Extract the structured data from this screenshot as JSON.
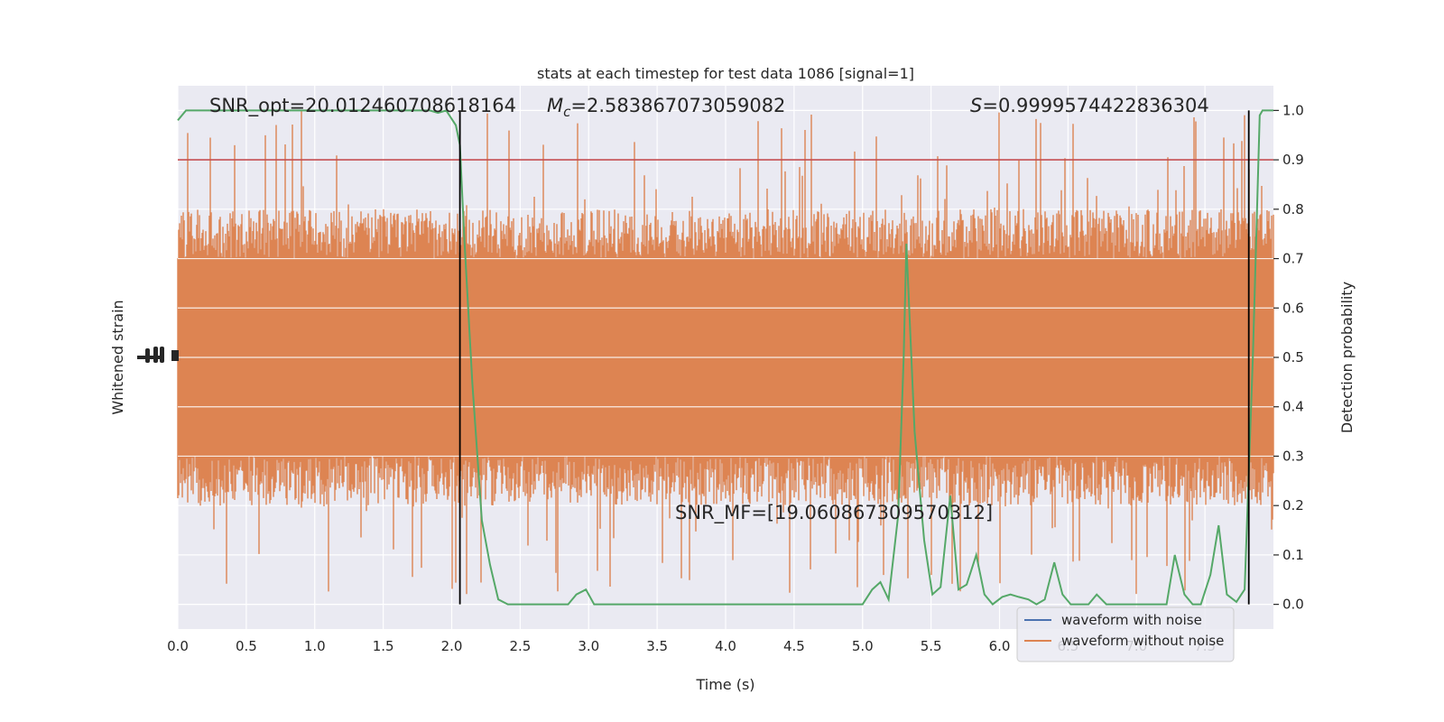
{
  "chart_data": {
    "type": "line",
    "title": "stats at each timestep for test data 1086 [signal=1]",
    "xlabel": "Time (s)",
    "ylabel_left": "Whitened strain",
    "ylabel_right": "Detection probability",
    "xlim": [
      0.0,
      8.0
    ],
    "ylim_right": [
      -0.05,
      1.05
    ],
    "x_ticks": [
      "0.0",
      "0.5",
      "1.0",
      "1.5",
      "2.0",
      "2.5",
      "3.0",
      "3.5",
      "4.0",
      "4.5",
      "5.0",
      "5.5",
      "6.0",
      "6.5",
      "7.0",
      "7.5"
    ],
    "y_ticks_right": [
      "0.0",
      "0.1",
      "0.2",
      "0.3",
      "0.4",
      "0.5",
      "0.6",
      "0.7",
      "0.8",
      "0.9",
      "1.0"
    ],
    "grid": true,
    "legend": {
      "placement": "bottom-right",
      "entries": [
        {
          "label": "waveform with noise",
          "color": "#4c72b0"
        },
        {
          "label": "waveform without noise",
          "color": "#dd8452"
        }
      ]
    },
    "annotations": {
      "snr_opt": "SNR_opt=20.012460708618164",
      "mc_symbol": "M",
      "mc_sub": "c",
      "mc_value": "=2.583867073059082",
      "s_symbol": "S",
      "s_value": "=0.9999574422836304",
      "snr_mf": "SNR_MF=[19.060867309570312]"
    },
    "threshold": 0.9,
    "vertical_lines_x": [
      2.06,
      7.82
    ],
    "colors": {
      "probability": "#55a868",
      "threshold": "#c44e52",
      "strain": "#dd8452",
      "vlines": "#000000",
      "background": "#eaeaf2"
    },
    "series": [
      {
        "name": "Detection probability",
        "x": [
          0.0,
          0.06,
          0.13,
          0.19,
          0.25,
          0.32,
          0.38,
          0.44,
          0.51,
          0.57,
          0.63,
          0.7,
          0.76,
          0.82,
          0.89,
          0.95,
          1.01,
          1.08,
          1.14,
          1.2,
          1.27,
          1.33,
          1.39,
          1.46,
          1.52,
          1.58,
          1.65,
          1.71,
          1.77,
          1.84,
          1.9,
          1.96,
          2.03,
          2.06,
          2.09,
          2.15,
          2.22,
          2.28,
          2.34,
          2.41,
          2.47,
          2.53,
          2.6,
          2.66,
          2.72,
          2.79,
          2.85,
          2.91,
          2.98,
          3.04,
          3.1,
          3.17,
          3.23,
          3.29,
          3.36,
          3.42,
          3.48,
          3.55,
          3.61,
          3.67,
          3.74,
          3.8,
          3.86,
          3.93,
          3.99,
          4.05,
          4.12,
          4.18,
          4.24,
          4.31,
          4.37,
          4.43,
          4.5,
          4.56,
          4.62,
          4.69,
          4.75,
          4.81,
          4.88,
          4.94,
          5.0,
          5.07,
          5.13,
          5.19,
          5.26,
          5.3,
          5.32,
          5.38,
          5.45,
          5.51,
          5.57,
          5.64,
          5.7,
          5.76,
          5.83,
          5.89,
          5.95,
          6.02,
          6.08,
          6.14,
          6.21,
          6.27,
          6.33,
          6.4,
          6.46,
          6.52,
          6.59,
          6.65,
          6.71,
          6.78,
          6.84,
          6.9,
          6.97,
          7.03,
          7.09,
          7.16,
          7.22,
          7.28,
          7.35,
          7.41,
          7.47,
          7.54,
          7.6,
          7.66,
          7.73,
          7.79,
          7.85,
          7.9,
          7.92,
          7.98,
          8.0
        ],
        "y": [
          0.98,
          1.0,
          1.0,
          1.0,
          1.0,
          1.0,
          1.0,
          1.0,
          1.0,
          1.0,
          1.0,
          1.0,
          1.0,
          1.0,
          1.0,
          1.0,
          1.0,
          1.0,
          1.0,
          1.0,
          1.0,
          1.0,
          1.0,
          1.0,
          1.0,
          1.0,
          1.0,
          1.0,
          1.0,
          1.0,
          0.995,
          1.0,
          0.97,
          0.93,
          0.75,
          0.45,
          0.17,
          0.08,
          0.01,
          0.0,
          0.0,
          0.0,
          0.0,
          0.0,
          0.0,
          0.0,
          0.0,
          0.02,
          0.03,
          0.0,
          0.0,
          0.0,
          0.0,
          0.0,
          0.0,
          0.0,
          0.0,
          0.0,
          0.0,
          0.0,
          0.0,
          0.0,
          0.0,
          0.0,
          0.0,
          0.0,
          0.0,
          0.0,
          0.0,
          0.0,
          0.0,
          0.0,
          0.0,
          0.0,
          0.0,
          0.0,
          0.0,
          0.0,
          0.0,
          0.0,
          0.0,
          0.03,
          0.045,
          0.01,
          0.18,
          0.5,
          0.73,
          0.35,
          0.13,
          0.02,
          0.035,
          0.22,
          0.03,
          0.04,
          0.1,
          0.02,
          0.0,
          0.015,
          0.02,
          0.015,
          0.01,
          0.0,
          0.01,
          0.085,
          0.02,
          0.0,
          0.0,
          0.0,
          0.02,
          0.0,
          0.0,
          0.0,
          0.0,
          0.0,
          0.0,
          0.0,
          0.0,
          0.1,
          0.02,
          0.0,
          0.0,
          0.06,
          0.16,
          0.02,
          0.005,
          0.03,
          0.5,
          0.99,
          1.0,
          1.0,
          1.0
        ]
      },
      {
        "name": "",
        "description_type": "noise_band",
        "color": "#dd8452",
        "envelope_prob_units": {
          "dense_low": 0.28,
          "dense_high": 0.72,
          "spike_min": 0.0,
          "spike_max": 1.0
        }
      }
    ]
  }
}
